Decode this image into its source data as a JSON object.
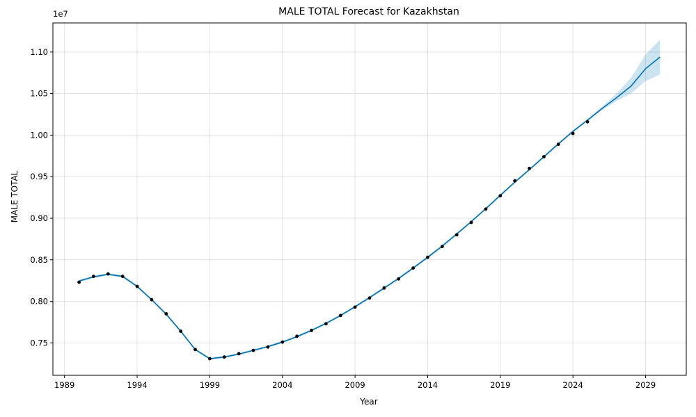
{
  "chart_data": {
    "type": "line",
    "title": "MALE TOTAL Forecast for Kazakhstan",
    "xlabel": "Year",
    "ylabel": "MALE TOTAL",
    "y_offset_label": "1e7",
    "xlim": [
      1988.2,
      2031.8
    ],
    "ylim": [
      7110000,
      11350000
    ],
    "grid": true,
    "x_ticks": [
      1989,
      1994,
      1999,
      2004,
      2009,
      2014,
      2019,
      2024,
      2029
    ],
    "y_ticks": [
      {
        "value": 7500000,
        "label": "0.75"
      },
      {
        "value": 8000000,
        "label": "0.80"
      },
      {
        "value": 8500000,
        "label": "0.85"
      },
      {
        "value": 9000000,
        "label": "0.90"
      },
      {
        "value": 9500000,
        "label": "0.95"
      },
      {
        "value": 10000000,
        "label": "1.00"
      },
      {
        "value": 10500000,
        "label": "1.05"
      },
      {
        "value": 11000000,
        "label": "1.10"
      }
    ],
    "observed": {
      "x": [
        1990,
        1991,
        1992,
        1993,
        1994,
        1995,
        1996,
        1997,
        1998,
        1999,
        2000,
        2001,
        2002,
        2003,
        2004,
        2005,
        2006,
        2007,
        2008,
        2009,
        2010,
        2011,
        2012,
        2013,
        2014,
        2015,
        2016,
        2017,
        2018,
        2019,
        2020,
        2021,
        2022,
        2023,
        2024,
        2025
      ],
      "y": [
        8230000,
        8300000,
        8330000,
        8300000,
        8180000,
        8020000,
        7850000,
        7640000,
        7420000,
        7310000,
        7330000,
        7370000,
        7410000,
        7450000,
        7510000,
        7580000,
        7650000,
        7730000,
        7830000,
        7930000,
        8040000,
        8160000,
        8270000,
        8400000,
        8530000,
        8660000,
        8800000,
        8950000,
        9110000,
        9270000,
        9450000,
        9600000,
        9740000,
        9890000,
        10020000,
        10160000
      ]
    },
    "forecast": {
      "x": [
        1990,
        1991,
        1992,
        1993,
        1994,
        1995,
        1996,
        1997,
        1998,
        1999,
        2000,
        2001,
        2002,
        2003,
        2004,
        2005,
        2006,
        2007,
        2008,
        2009,
        2010,
        2011,
        2012,
        2013,
        2014,
        2015,
        2016,
        2017,
        2018,
        2019,
        2020,
        2021,
        2022,
        2023,
        2024,
        2025,
        2026,
        2027,
        2028,
        2029,
        2030
      ],
      "y": [
        8245000,
        8295000,
        8325000,
        8300000,
        8180000,
        8020000,
        7845000,
        7640000,
        7420000,
        7310000,
        7330000,
        7365000,
        7410000,
        7455000,
        7510000,
        7575000,
        7650000,
        7735000,
        7830000,
        7935000,
        8045000,
        8160000,
        8275000,
        8400000,
        8530000,
        8665000,
        8810000,
        8960000,
        9115000,
        9275000,
        9435000,
        9585000,
        9740000,
        9895000,
        10045000,
        10180000,
        10320000,
        10450000,
        10590000,
        10800000,
        10940000
      ],
      "lower": [
        8230000,
        8280000,
        8310000,
        8285000,
        8165000,
        8005000,
        7830000,
        7625000,
        7405000,
        7295000,
        7315000,
        7350000,
        7395000,
        7440000,
        7495000,
        7560000,
        7635000,
        7720000,
        7815000,
        7920000,
        8030000,
        8145000,
        8260000,
        8385000,
        8515000,
        8650000,
        8795000,
        8945000,
        9100000,
        9260000,
        9420000,
        9570000,
        9725000,
        9880000,
        10030000,
        10165000,
        10300000,
        10410000,
        10500000,
        10650000,
        10730000
      ],
      "upper": [
        8260000,
        8310000,
        8340000,
        8315000,
        8195000,
        8035000,
        7860000,
        7655000,
        7435000,
        7325000,
        7345000,
        7380000,
        7425000,
        7470000,
        7525000,
        7590000,
        7665000,
        7750000,
        7845000,
        7950000,
        8060000,
        8175000,
        8290000,
        8415000,
        8545000,
        8680000,
        8825000,
        8975000,
        9130000,
        9290000,
        9450000,
        9600000,
        9755000,
        9910000,
        10060000,
        10195000,
        10345000,
        10500000,
        10690000,
        10970000,
        11150000
      ]
    }
  }
}
